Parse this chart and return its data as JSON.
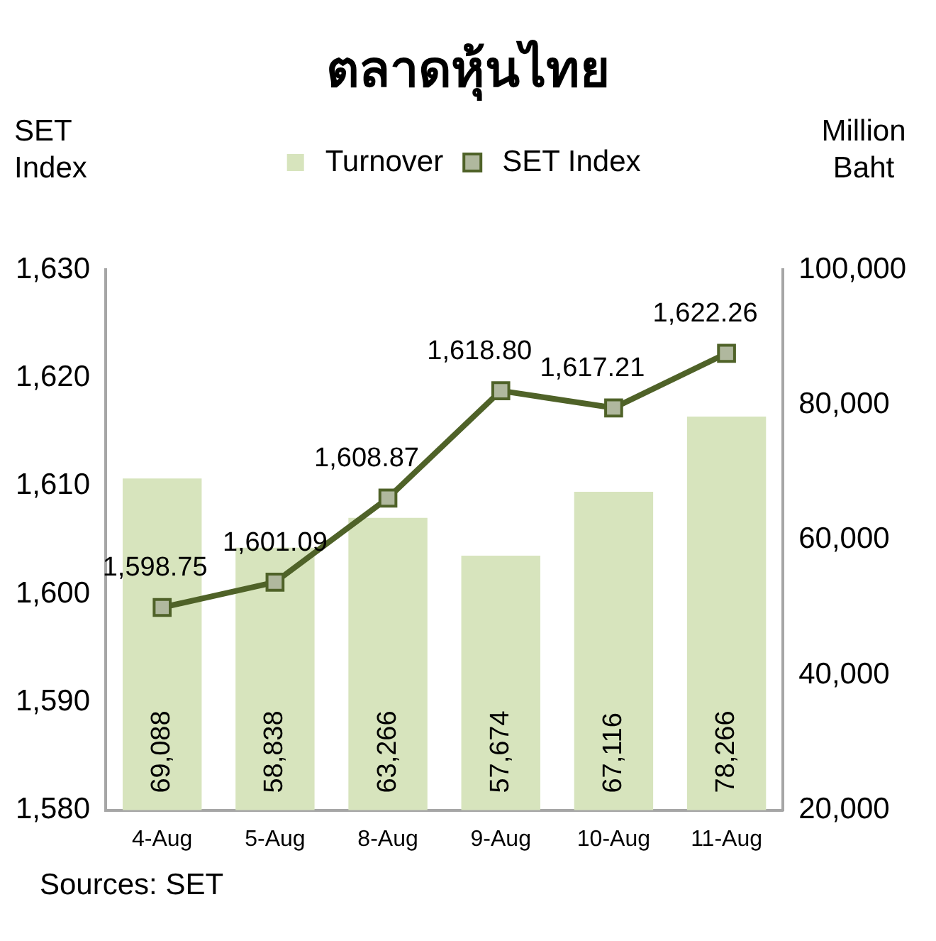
{
  "chart_data": {
    "type": "bar",
    "title": "ตลาดหุ้นไทย",
    "ylabel": "SET Index",
    "y2label": "Million Baht",
    "categories": [
      "4-Aug",
      "5-Aug",
      "8-Aug",
      "9-Aug",
      "10-Aug",
      "11-Aug"
    ],
    "series": [
      {
        "name": "Turnover",
        "axis": "y2",
        "color": "#d7e4bd",
        "values": [
          69088,
          58838,
          63266,
          57674,
          67116,
          78266
        ],
        "value_labels": [
          "69,088",
          "58,838",
          "63,266",
          "57,674",
          "67,116",
          "78,266"
        ]
      },
      {
        "name": "SET Index",
        "type": "line",
        "axis": "y",
        "color": "#4f6228",
        "values": [
          1598.75,
          1601.09,
          1608.87,
          1618.8,
          1617.21,
          1622.26
        ],
        "value_labels": [
          "1,598.75",
          "1,601.09",
          "1,608.87",
          "1,618.80",
          "1,617.21",
          "1,622.26"
        ]
      }
    ],
    "ylim": [
      1580,
      1630
    ],
    "yticks": [
      {
        "value": 1580,
        "label": "1,580"
      },
      {
        "value": 1590,
        "label": "1,590"
      },
      {
        "value": 1600,
        "label": "1,600"
      },
      {
        "value": 1610,
        "label": "1,610"
      },
      {
        "value": 1620,
        "label": "1,620"
      },
      {
        "value": 1630,
        "label": "1,630"
      }
    ],
    "y2lim": [
      20000,
      100000
    ],
    "y2ticks": [
      {
        "value": 20000,
        "label": "20,000"
      },
      {
        "value": 40000,
        "label": "40,000"
      },
      {
        "value": 60000,
        "label": "60,000"
      },
      {
        "value": 80000,
        "label": "80,000"
      },
      {
        "value": 100000,
        "label": "100,000"
      }
    ],
    "legend": "top",
    "marker": "square",
    "grid": false,
    "annotations": [
      "Sources: SET"
    ]
  }
}
